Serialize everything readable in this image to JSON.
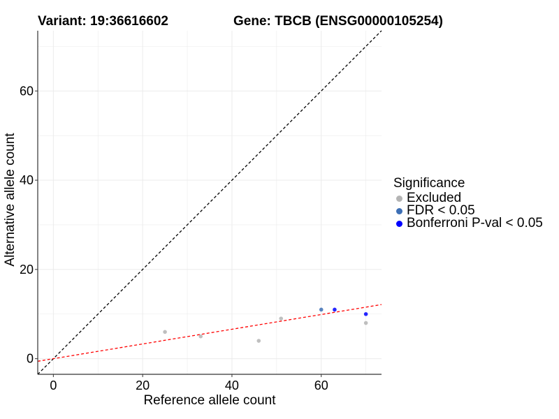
{
  "header": {
    "variant_label": "Variant: 19:36616602",
    "gene_label": "Gene: TBCB (ENSG00000105254)"
  },
  "chart_data": {
    "type": "scatter",
    "xlabel": "Reference allele count",
    "ylabel": "Alternative allele count",
    "xlim": [
      -3.5,
      73.5
    ],
    "ylim": [
      -3.5,
      73.5
    ],
    "x_ticks": [
      0,
      20,
      40,
      60
    ],
    "y_ticks": [
      0,
      20,
      40,
      60
    ],
    "grid": true,
    "legend_position": "right",
    "legend": {
      "title": "Significance",
      "entries": [
        {
          "label": "Excluded",
          "color": "#b4b4b4"
        },
        {
          "label": "FDR < 0.05",
          "color": "#3d6fb5"
        },
        {
          "label": "Bonferroni P-val < 0.05",
          "color": "#0000ff"
        }
      ]
    },
    "points": [
      {
        "x": 25,
        "y": 6,
        "group": "Excluded"
      },
      {
        "x": 33,
        "y": 5,
        "group": "Excluded"
      },
      {
        "x": 46,
        "y": 4,
        "group": "Excluded"
      },
      {
        "x": 51,
        "y": 9,
        "group": "Excluded"
      },
      {
        "x": 70,
        "y": 8,
        "group": "Excluded"
      },
      {
        "x": 60,
        "y": 11,
        "group": "FDR < 0.05"
      },
      {
        "x": 63,
        "y": 11,
        "group": "Bonferroni P-val < 0.05"
      },
      {
        "x": 70,
        "y": 10,
        "group": "Bonferroni P-val < 0.05"
      }
    ],
    "reference_lines": [
      {
        "name": "identity",
        "slope": 1,
        "intercept": 0,
        "color": "#000000",
        "style": "dashed"
      },
      {
        "name": "fit",
        "slope": 0.165,
        "intercept": 0,
        "color": "#ff0000",
        "style": "dashed"
      }
    ]
  }
}
